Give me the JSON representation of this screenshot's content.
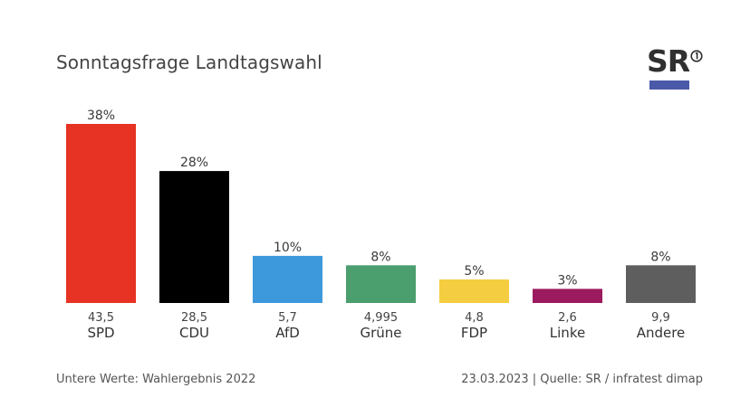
{
  "chart_data": {
    "type": "bar",
    "title": "Sonntagsfrage Landtagswahl",
    "categories": [
      "SPD",
      "CDU",
      "AfD",
      "Grüne",
      "FDP",
      "Linke",
      "Andere"
    ],
    "values": [
      38,
      28,
      10,
      8,
      5,
      3,
      8
    ],
    "value_labels": [
      "38%",
      "28%",
      "10%",
      "8%",
      "5%",
      "3%",
      "8%"
    ],
    "previous_results": [
      "43,5",
      "28,5",
      "5,7",
      "4,995",
      "4,8",
      "2,6",
      "9,9"
    ],
    "colors": [
      "#e63323",
      "#000000",
      "#3e99dc",
      "#4b9e6e",
      "#f5cd41",
      "#9c1a5e",
      "#5e5e5e"
    ],
    "ylim": [
      0,
      38
    ],
    "xlabel": "",
    "ylabel": "",
    "grid": false
  },
  "footer": {
    "note": "Untere Werte: Wahlergebnis 2022",
    "source": "23.03.2023 | Quelle: SR / infratest dimap"
  },
  "logo": {
    "text": "SR",
    "bar_color": "#4a59a8"
  }
}
